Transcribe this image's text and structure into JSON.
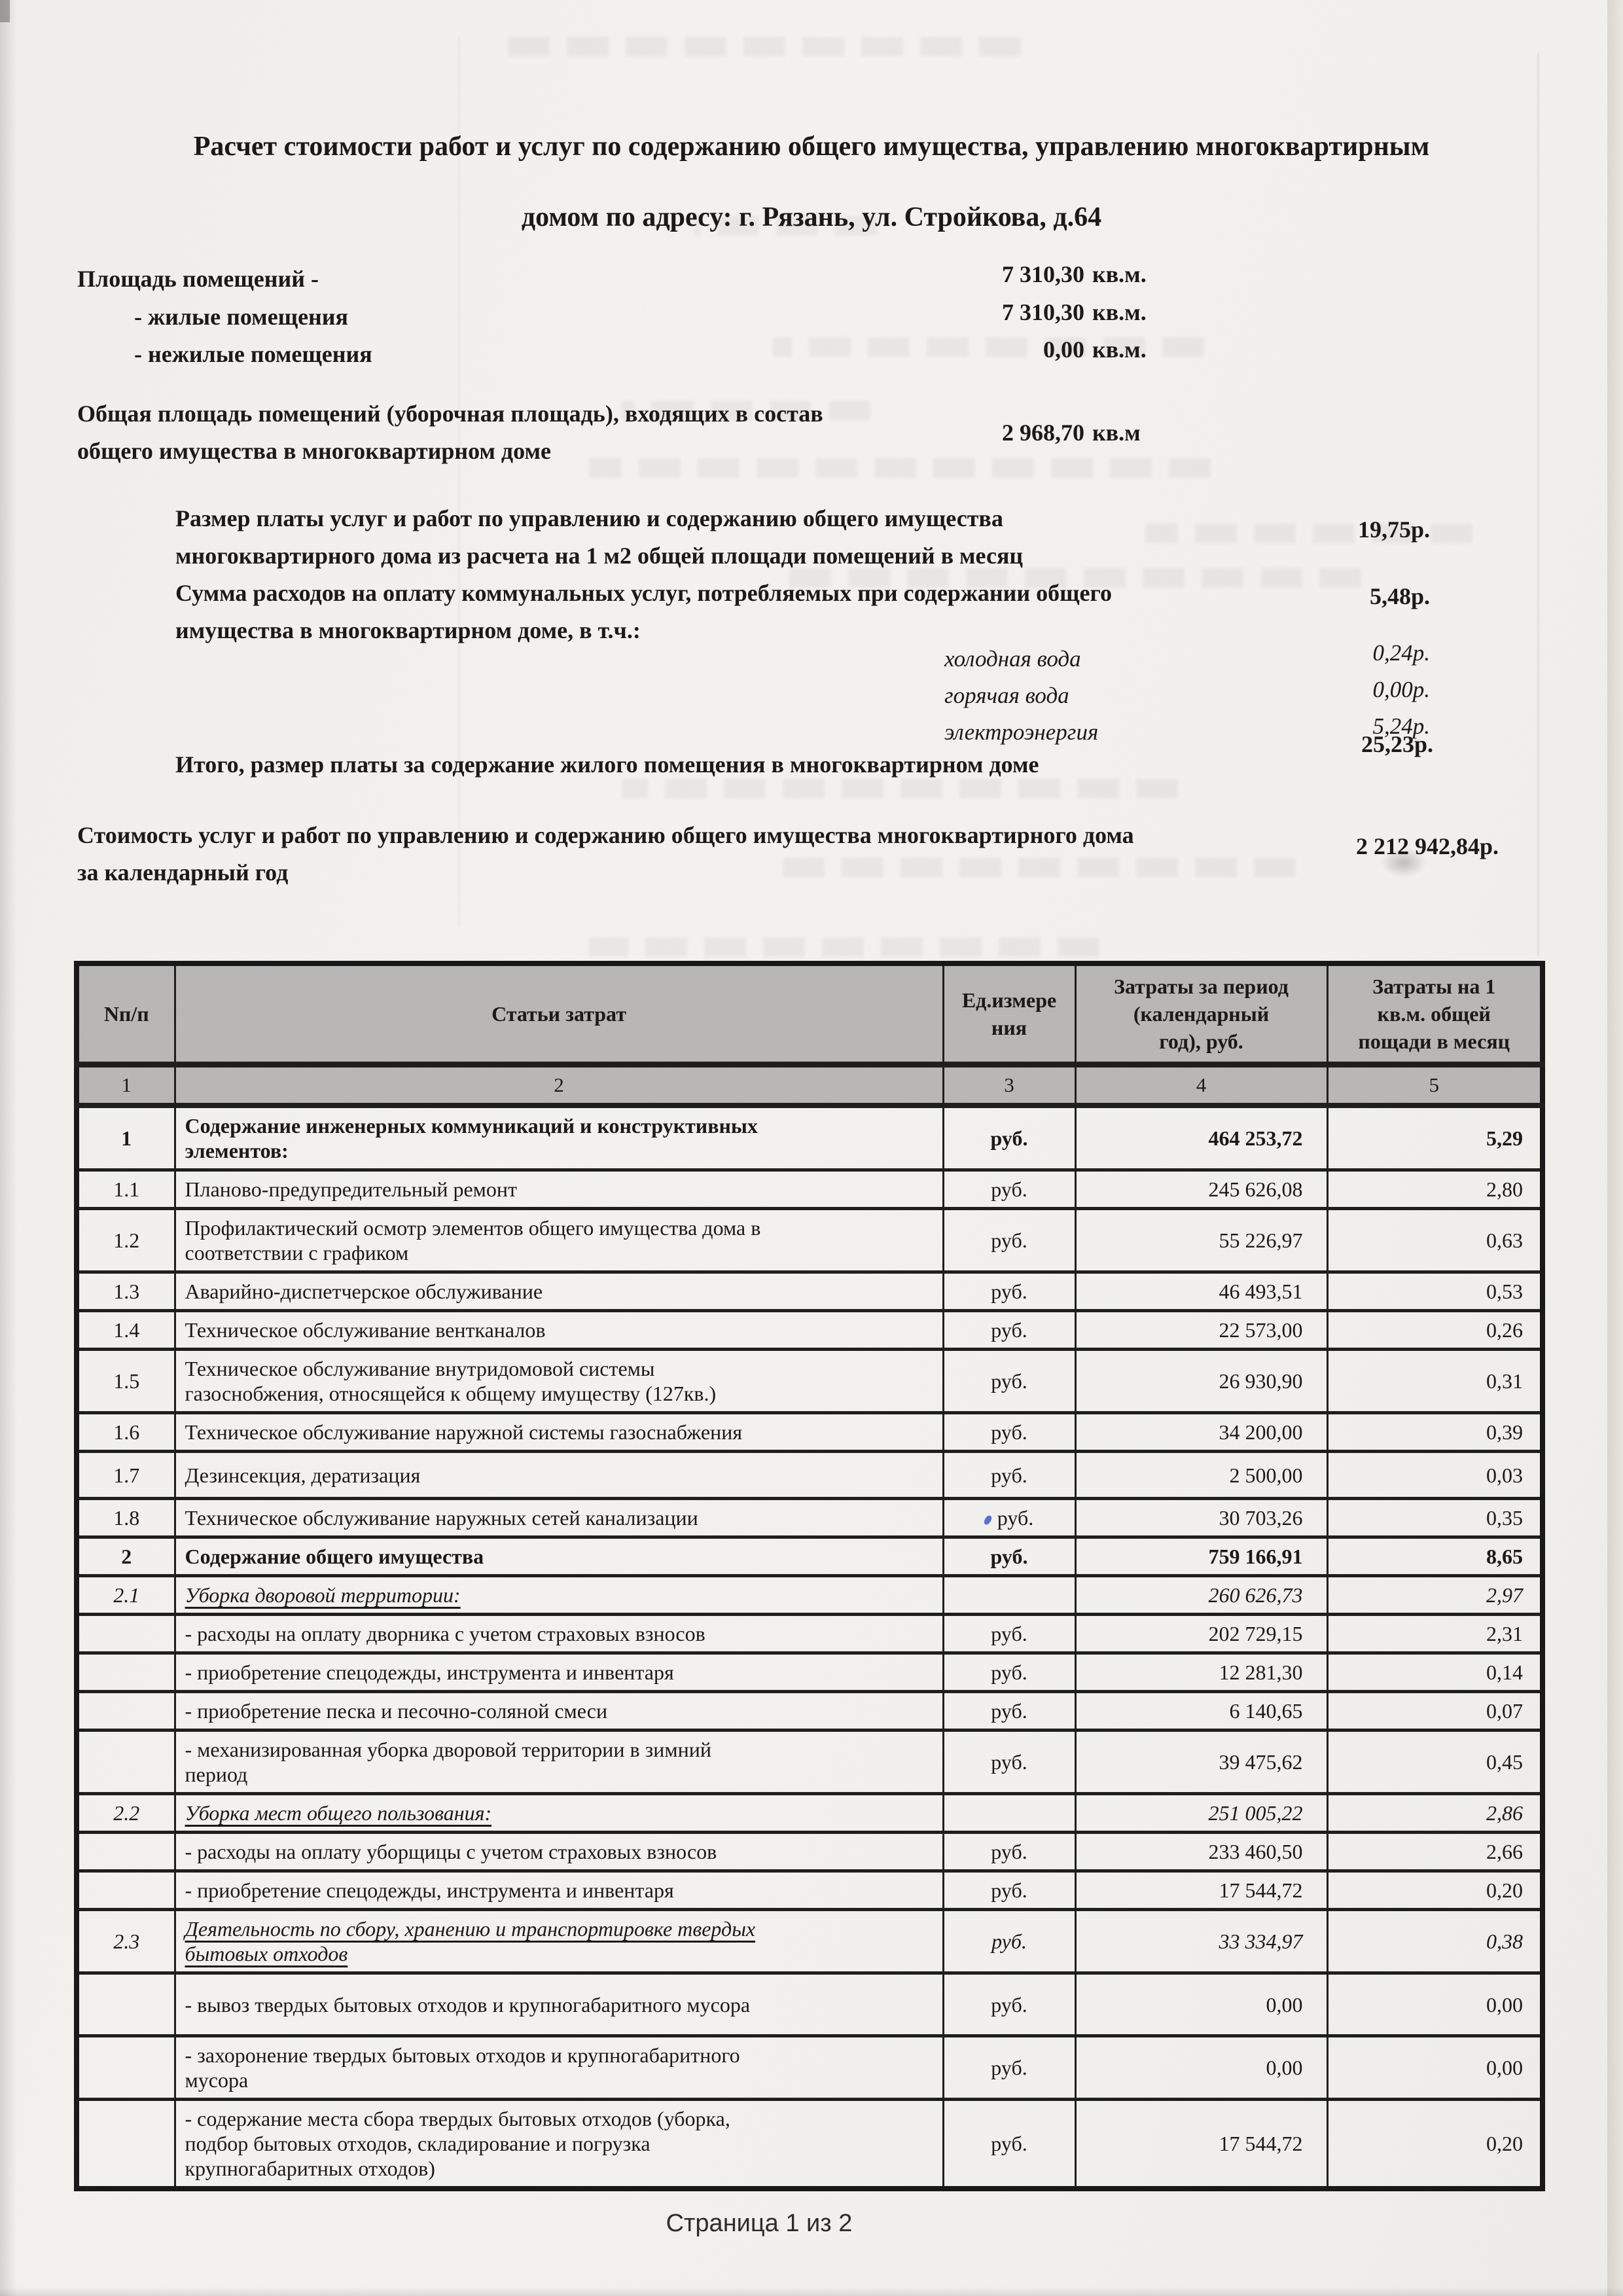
{
  "page": {
    "title": "Расчет стоимости работ и услуг по содержанию общего имущества, управлению многоквартирным\nдомом по адресу: г. Рязань, ул. Стройкова, д.64",
    "footer": "Страница 1 из 2"
  },
  "summary": {
    "area": {
      "label": "Площадь помещений -",
      "value": "7 310,30",
      "unit": "кв.м."
    },
    "residential": {
      "label": "- жилые помещения",
      "value": "7 310,30",
      "unit": "кв.м."
    },
    "non_residential": {
      "label": "- нежилые помещения",
      "value": "0,00",
      "unit": "кв.м."
    },
    "common_area": {
      "label": "Общая площадь помещений (уборочная площадь), входящих в состав\nобщего имущества в многоквартирном доме",
      "value": "2 968,70",
      "unit": "кв.м"
    },
    "management_fee": {
      "label": "Размер платы услуг и работ по управлению и содержанию общего имущества\nмногоквартирного дома из расчета на 1 м2 общей площади помещений в месяц",
      "value": "19,75р."
    },
    "utilities": {
      "label": "Сумма расходов на оплату коммунальных услуг, потребляемых при содержании общего\nимущества в многоквартирном доме, в т.ч.:",
      "value": "5,48р."
    },
    "cold_water": {
      "label": "холодная вода",
      "value": "0,24р."
    },
    "hot_water": {
      "label": "горячая вода",
      "value": "0,00р."
    },
    "electricity": {
      "label": "электроэнергия",
      "value": "5,24р."
    },
    "total": {
      "label": "Итого, размер платы за содержание жилого помещения в многоквартирном доме",
      "value": "25,23р."
    },
    "annual_cost": {
      "label": "Стоимость услуг и работ по управлению и содержанию общего имущества многоквартирного дома\nза календарный год",
      "value": "2 212 942,84р."
    }
  },
  "table": {
    "headers": [
      "Nп/п",
      "Статьи затрат",
      "Ед.измере\nния",
      "Затраты за период\n(календарный\nгод), руб.",
      "Затраты на 1\nкв.м. общей\nпощади в месяц"
    ],
    "column_numbers": [
      "1",
      "2",
      "3",
      "4",
      "5"
    ],
    "rows": [
      {
        "num": "1",
        "label": "Содержание инженерных коммуникаций и конструктивных\nэлементов:",
        "unit": "руб.",
        "year": "464 253,72",
        "month": "5,29",
        "style": "bold"
      },
      {
        "num": "1.1",
        "label": "Планово-предупредительный  ремонт",
        "unit": "руб.",
        "year": "245 626,08",
        "month": "2,80",
        "style": "plain"
      },
      {
        "num": "1.2",
        "label": "Профилактический осмотр элементов общего имущества дома в\nсоответствии с графиком",
        "unit": "руб.",
        "year": "55 226,97",
        "month": "0,63",
        "style": "plain"
      },
      {
        "num": "1.3",
        "label": "Аварийно-диспетчерское обслуживание",
        "unit": "руб.",
        "year": "46 493,51",
        "month": "0,53",
        "style": "plain"
      },
      {
        "num": "1.4",
        "label": "Техническое обслуживание вентканалов",
        "unit": "руб.",
        "year": "22 573,00",
        "month": "0,26",
        "style": "plain"
      },
      {
        "num": "1.5",
        "label": "Техническое обслуживание внутридомовой системы\nгазоснобжения, относящейся к общему имуществу  (127кв.)",
        "unit": "руб.",
        "year": "26 930,90",
        "month": "0,31",
        "style": "plain"
      },
      {
        "num": "1.6",
        "label": "Техническое обслуживание наружной системы газоснабжения",
        "unit": "руб.",
        "year": "34 200,00",
        "month": "0,39",
        "style": "plain"
      },
      {
        "num": "1.7",
        "label": "Дезинсекция, дератизация",
        "unit": "руб.",
        "year": "2 500,00",
        "month": "0,03",
        "style": "plain",
        "h": 72
      },
      {
        "num": "1.8",
        "label": "Техническое обслуживание наружных сетей канализации",
        "unit": "руб.",
        "year": "30 703,26",
        "month": "0,35",
        "style": "plain",
        "ink_dot": true
      },
      {
        "num": "2",
        "label": "Содержание общего имущества",
        "unit": "руб.",
        "year": "759 166,91",
        "month": "8,65",
        "style": "bold"
      },
      {
        "num": "2.1",
        "label": "Уборка дворовой территории:",
        "unit": "",
        "year": "260 626,73",
        "month": "2,97",
        "style": "section"
      },
      {
        "num": "",
        "label": "- расходы на оплату дворника с учетом страховых взносов",
        "unit": "руб.",
        "year": "202 729,15",
        "month": "2,31",
        "style": "plain"
      },
      {
        "num": "",
        "label": "- приобретение спецодежды, инструмента и инвентаря",
        "unit": "руб.",
        "year": "12 281,30",
        "month": "0,14",
        "style": "plain"
      },
      {
        "num": "",
        "label": "- приобретение песка и песочно-соляной смеси",
        "unit": "руб.",
        "year": "6 140,65",
        "month": "0,07",
        "style": "plain"
      },
      {
        "num": "",
        "label": "- механизированная уборка дворовой территории в зимний\nпериод",
        "unit": "руб.",
        "year": "39 475,62",
        "month": "0,45",
        "style": "plain"
      },
      {
        "num": "2.2",
        "label": "Уборка мест общего пользования:",
        "unit": "",
        "year": "251 005,22",
        "month": "2,86",
        "style": "section"
      },
      {
        "num": "",
        "label": "- расходы на оплату уборщицы  с учетом страховых взносов",
        "unit": "руб.",
        "year": "233 460,50",
        "month": "2,66",
        "style": "plain"
      },
      {
        "num": "",
        "label": "- приобретение спецодежды, инструмента и инвентаря",
        "unit": "руб.",
        "year": "17 544,72",
        "month": "0,20",
        "style": "plain"
      },
      {
        "num": "2.3",
        "label": "Деятельность по сбору, хранению и транспортировке твердых\nбытовых отходов",
        "unit": "руб.",
        "year": "33 334,97",
        "month": "0,38",
        "style": "section"
      },
      {
        "num": "",
        "label": "- вывоз твердых бытовых отходов и крупногабаритного мусора",
        "unit": "руб.",
        "year": "0,00",
        "month": "0,00",
        "style": "plain",
        "h": 96
      },
      {
        "num": "",
        "label": "- захоронение  твердых бытовых отходов и крупногабаритного\nмусора",
        "unit": "руб.",
        "year": "0,00",
        "month": "0,00",
        "style": "plain"
      },
      {
        "num": "",
        "label": "- содержание места сбора твердых бытовых отходов (уборка,\nподбор бытовых отходов, складирование и погрузка\nкрупногабаритных отходов)",
        "unit": "руб.",
        "year": "17 544,72",
        "month": "0,20",
        "style": "plain"
      }
    ]
  }
}
